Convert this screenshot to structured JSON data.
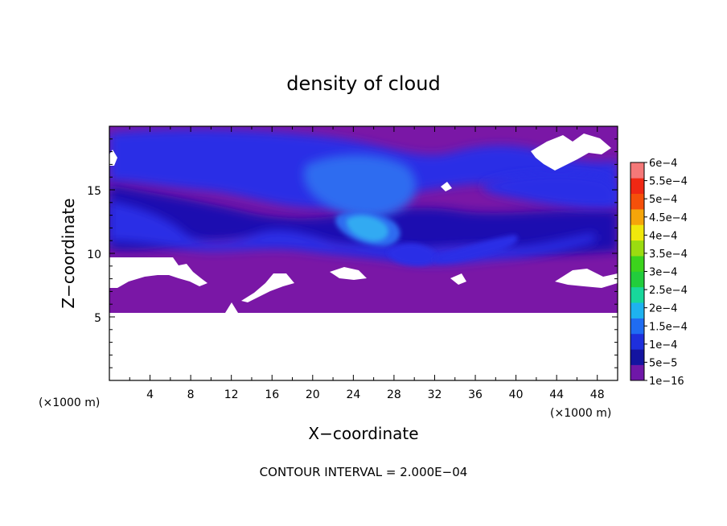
{
  "chart_data": {
    "type": "heatmap",
    "title": "density of cloud",
    "xlabel": "X−coordinate",
    "ylabel": "Z−coordinate",
    "x_unit": "(×1000 m)",
    "z_unit": "(×1000 m)",
    "xlim": [
      0,
      50
    ],
    "ylim": [
      0,
      20
    ],
    "x_ticks": [
      4,
      8,
      12,
      16,
      20,
      24,
      28,
      32,
      36,
      40,
      44,
      48
    ],
    "y_ticks": [
      5,
      10,
      15
    ],
    "colorbar": {
      "labels": [
        "1e−16",
        "5e−5",
        "1e−4",
        "1.5e−4",
        "2e−4",
        "2.5e−4",
        "3e−4",
        "3.5e−4",
        "4e−4",
        "4.5e−4",
        "5e−4",
        "5.5e−4",
        "6e−4"
      ],
      "values": [
        1e-16,
        5e-05,
        0.0001,
        0.00015,
        0.0002,
        0.00025,
        0.0003,
        0.00035,
        0.0004,
        0.00045,
        0.0005,
        0.00055,
        0.0006
      ],
      "colors": [
        "#6f17a8",
        "#1414a0",
        "#1e2fdc",
        "#1f6cf2",
        "#1eb2ef",
        "#18d79b",
        "#22cd3c",
        "#3cd41c",
        "#9bdc10",
        "#f0e80c",
        "#f5a50a",
        "#f5500a",
        "#f02814",
        "#f57878"
      ]
    },
    "field_description_colors": {
      "purple": "#7a17a6",
      "dark_blue": "#1a10b0",
      "blue": "#2a2fe6",
      "light_blue": "#2f6cf0",
      "cyan_blue": "#32aaf2"
    }
  },
  "footer": "CONTOUR INTERVAL = 2.000E−04"
}
